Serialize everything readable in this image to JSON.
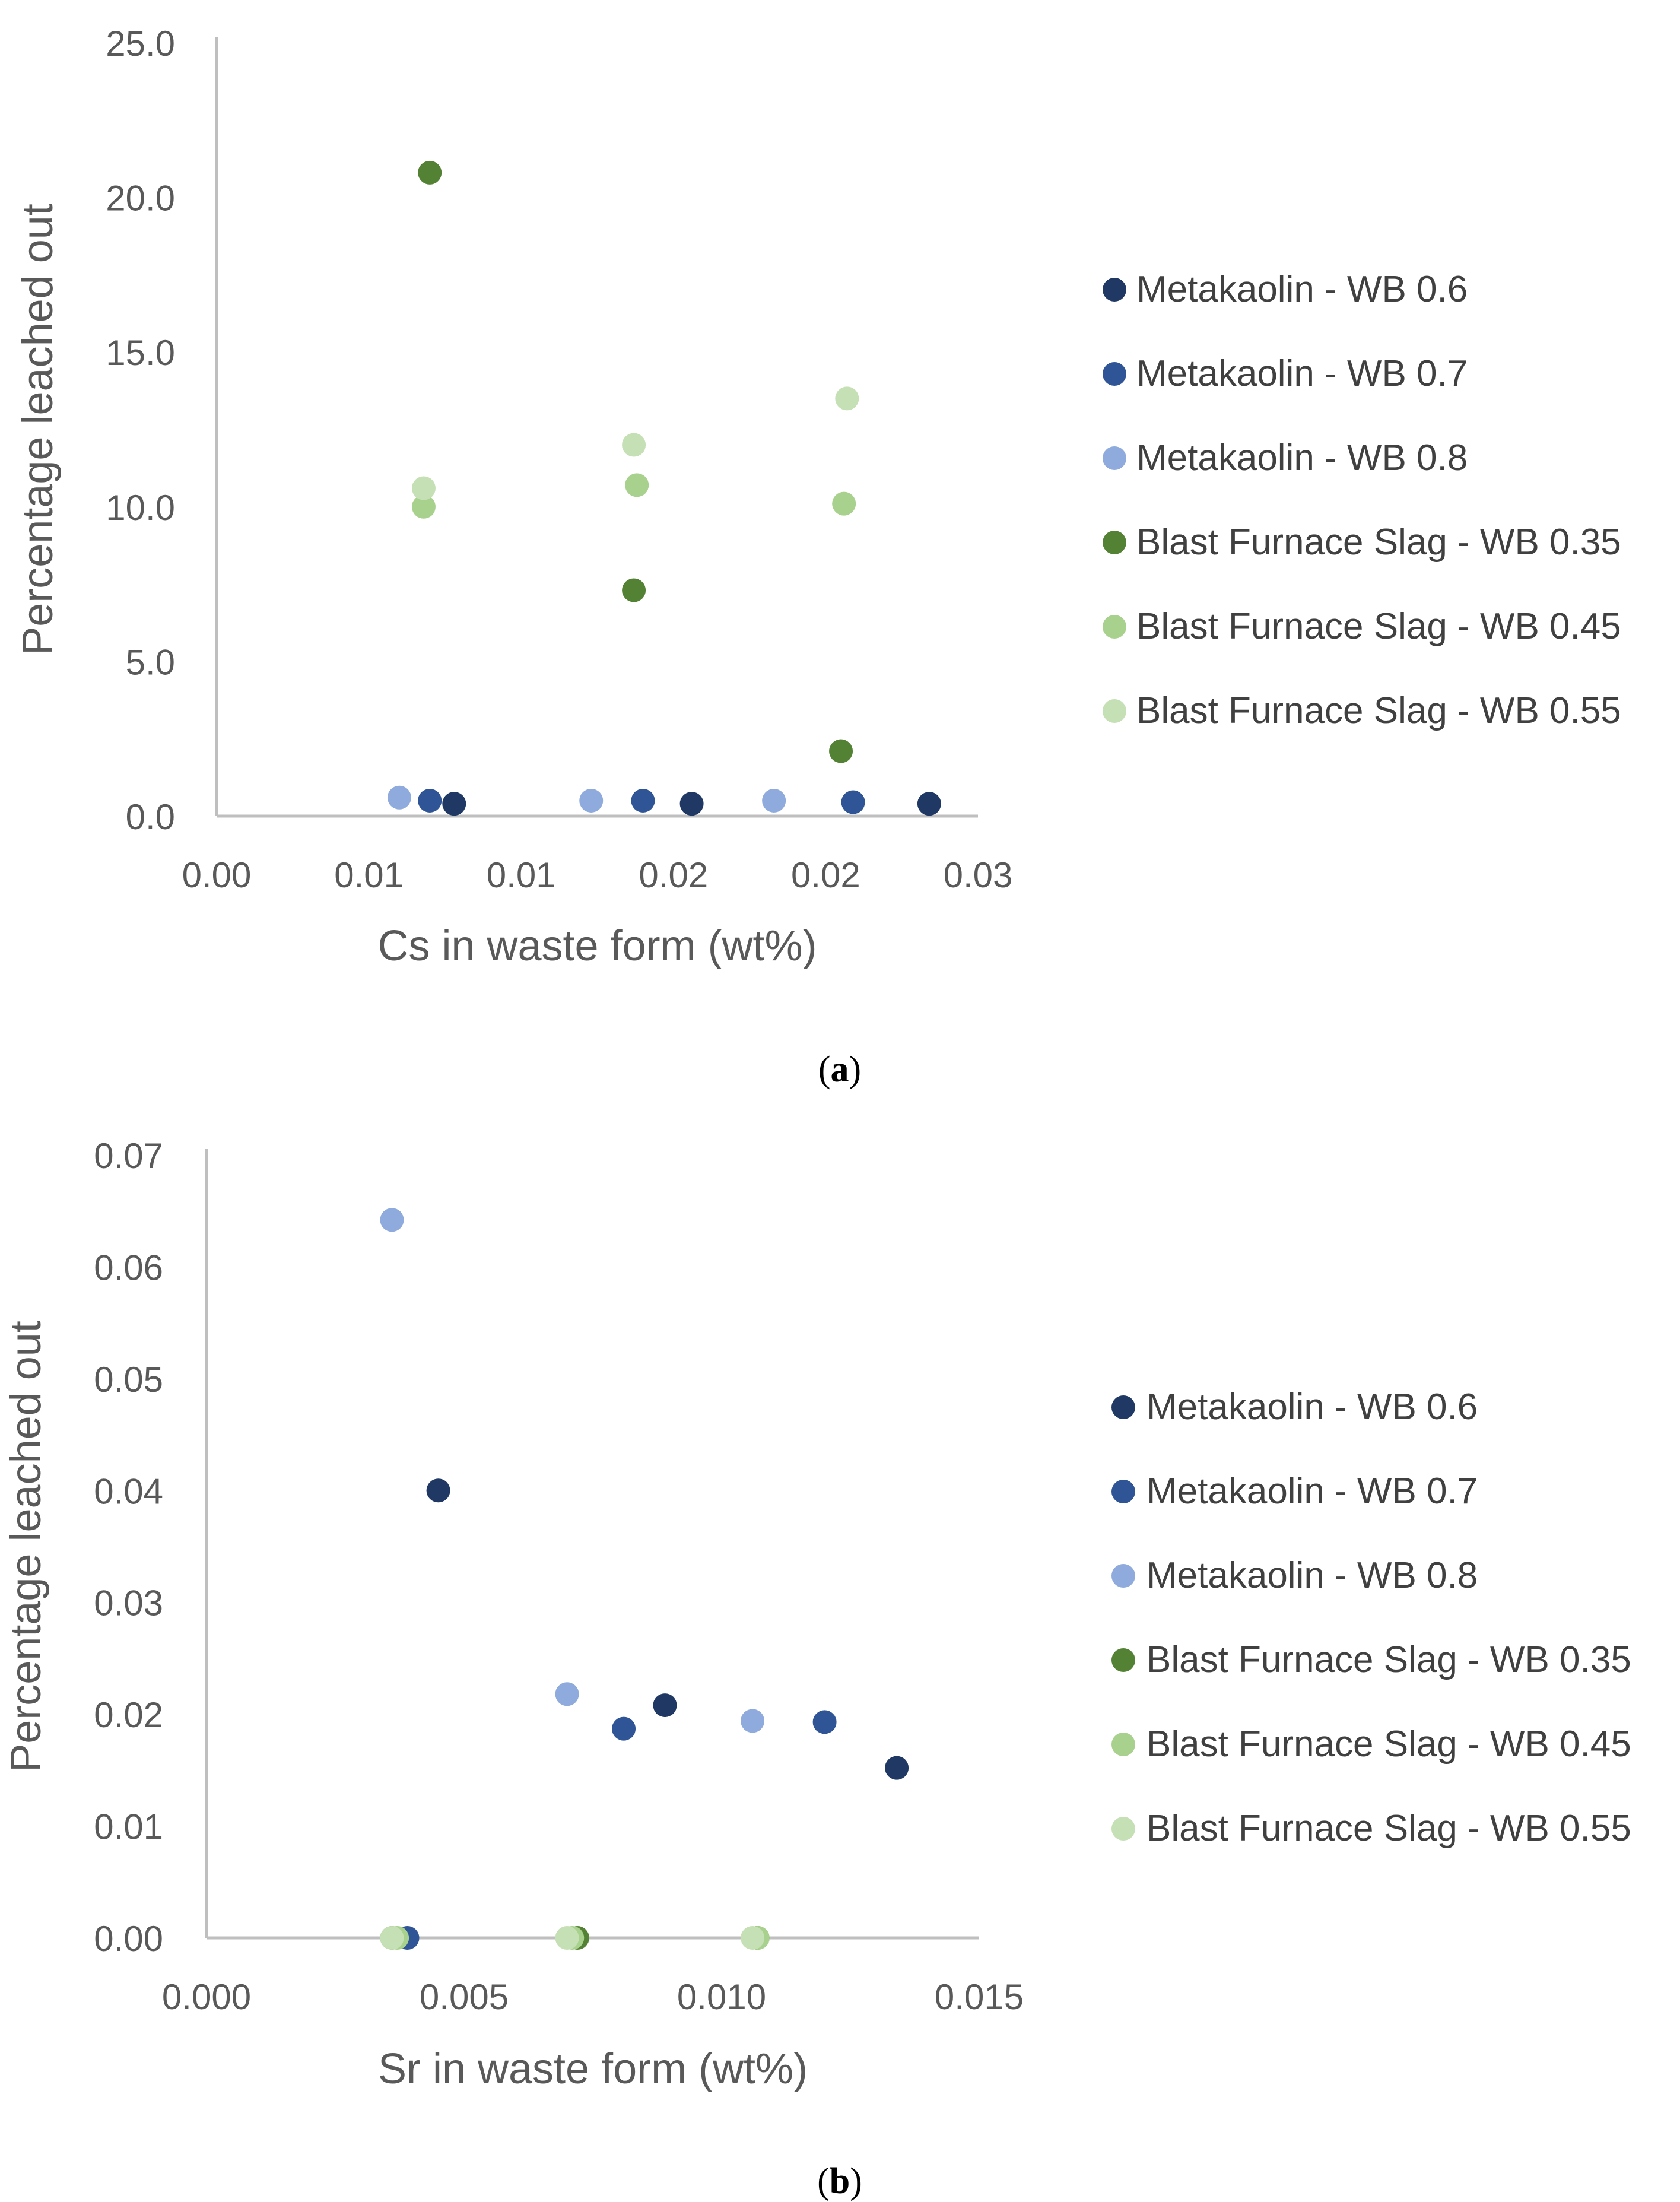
{
  "chart_data": [
    {
      "type": "scatter",
      "panel_label": "(a)",
      "panel_label_letter": "a",
      "xlabel": "Cs in waste form (wt%)",
      "ylabel": "Percentage leached out",
      "xlim": [
        0,
        0.025
      ],
      "ylim": [
        0,
        25
      ],
      "x_ticks": [
        0,
        0.005,
        0.01,
        0.015,
        0.02,
        0.025
      ],
      "x_tick_labels": [
        "0.00",
        "0.01",
        "0.01",
        "0.02",
        "0.02",
        "0.03"
      ],
      "y_ticks": [
        0,
        5,
        10,
        15,
        20,
        25
      ],
      "y_tick_labels": [
        "0.0",
        "5.0",
        "10.0",
        "15.0",
        "20.0",
        "25.0"
      ],
      "legend_position": "right",
      "series": [
        {
          "name": "Metakaolin - WB 0.6",
          "color": "#1f3864",
          "points": [
            [
              0.0078,
              0.4
            ],
            [
              0.0156,
              0.4
            ],
            [
              0.0234,
              0.4
            ]
          ]
        },
        {
          "name": "Metakaolin - WB 0.7",
          "color": "#2f5597",
          "points": [
            [
              0.007,
              0.5
            ],
            [
              0.014,
              0.5
            ],
            [
              0.0209,
              0.45
            ]
          ]
        },
        {
          "name": "Metakaolin - WB 0.8",
          "color": "#8faadc",
          "points": [
            [
              0.006,
              0.6
            ],
            [
              0.0123,
              0.5
            ],
            [
              0.0183,
              0.5
            ]
          ]
        },
        {
          "name": "Blast Furnace Slag - WB 0.35",
          "color": "#548235",
          "points": [
            [
              0.007,
              20.8
            ],
            [
              0.0137,
              7.3
            ],
            [
              0.0205,
              2.1
            ]
          ]
        },
        {
          "name": "Blast Furnace Slag - WB 0.45",
          "color": "#a9d18e",
          "points": [
            [
              0.0068,
              10.0
            ],
            [
              0.0138,
              10.7
            ],
            [
              0.0206,
              10.1
            ]
          ]
        },
        {
          "name": "Blast Furnace Slag - WB 0.55",
          "color": "#c5e0b4",
          "points": [
            [
              0.0068,
              10.6
            ],
            [
              0.0137,
              12.0
            ],
            [
              0.0207,
              13.5
            ]
          ]
        }
      ]
    },
    {
      "type": "scatter",
      "panel_label": "(b)",
      "panel_label_letter": "b",
      "xlabel": "Sr in waste form (wt%)",
      "ylabel": "Percentage leached out",
      "xlim": [
        0,
        0.015
      ],
      "ylim": [
        0,
        0.07
      ],
      "x_ticks": [
        0,
        0.005,
        0.01,
        0.015
      ],
      "x_tick_labels": [
        "0.000",
        "0.005",
        "0.010",
        "0.015"
      ],
      "y_ticks": [
        0,
        0.01,
        0.02,
        0.03,
        0.04,
        0.05,
        0.06,
        0.07
      ],
      "y_tick_labels": [
        "0.00",
        "0.01",
        "0.02",
        "0.03",
        "0.04",
        "0.05",
        "0.06",
        "0.07"
      ],
      "legend_position": "right",
      "series": [
        {
          "name": "Metakaolin - WB 0.6",
          "color": "#1f3864",
          "points": [
            [
              0.0045,
              0.04
            ],
            [
              0.0089,
              0.0208
            ],
            [
              0.0134,
              0.0152
            ]
          ]
        },
        {
          "name": "Metakaolin - WB 0.7",
          "color": "#2f5597",
          "points": [
            [
              0.0039,
              0.0
            ],
            [
              0.0081,
              0.0187
            ],
            [
              0.012,
              0.0193
            ]
          ]
        },
        {
          "name": "Metakaolin - WB 0.8",
          "color": "#8faadc",
          "points": [
            [
              0.0036,
              0.0642
            ],
            [
              0.007,
              0.0218
            ],
            [
              0.0106,
              0.0194
            ]
          ]
        },
        {
          "name": "Blast Furnace Slag - WB 0.35",
          "color": "#548235",
          "points": [
            [
              0.0036,
              0.0
            ],
            [
              0.0072,
              0.0
            ],
            [
              0.0107,
              0.0
            ]
          ]
        },
        {
          "name": "Blast Furnace Slag - WB 0.45",
          "color": "#a9d18e",
          "points": [
            [
              0.0037,
              0.0
            ],
            [
              0.0071,
              0.0
            ],
            [
              0.0107,
              0.0
            ]
          ]
        },
        {
          "name": "Blast Furnace Slag - WB 0.55",
          "color": "#c5e0b4",
          "points": [
            [
              0.0036,
              0.0
            ],
            [
              0.007,
              0.0
            ],
            [
              0.0106,
              0.0
            ]
          ]
        }
      ]
    }
  ]
}
